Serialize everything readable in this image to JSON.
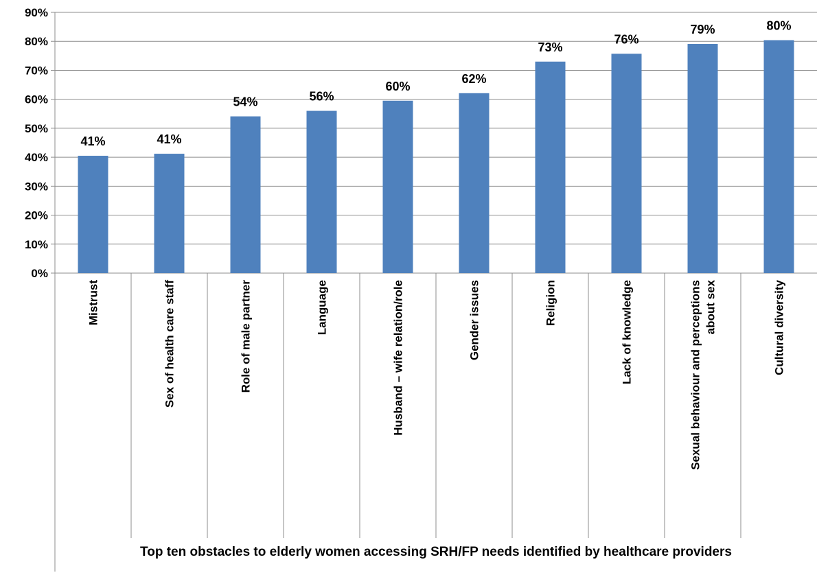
{
  "chart_data": {
    "type": "bar",
    "title": "",
    "xlabel": "Top ten obstacles to elderly women accessing SRH/FP needs identified by healthcare providers",
    "ylabel": "",
    "ylim": [
      0,
      90
    ],
    "y_ticks": [
      "0%",
      "10%",
      "20%",
      "30%",
      "40%",
      "50%",
      "60%",
      "70%",
      "80%",
      "90%"
    ],
    "y_tick_values": [
      0,
      10,
      20,
      30,
      40,
      50,
      60,
      70,
      80,
      90
    ],
    "grid": true,
    "legend": "none",
    "bar_color": "#4F81BD",
    "categories": [
      [
        "Mistrust"
      ],
      [
        "Sex of health care staff"
      ],
      [
        "Role of male partner"
      ],
      [
        "Language"
      ],
      [
        "Husband – wife relation/role"
      ],
      [
        "Gender issues"
      ],
      [
        "Religion"
      ],
      [
        "Lack of knowledge"
      ],
      [
        "Sexual behaviour and perceptions",
        "about sex"
      ],
      [
        "Cultural diversity"
      ]
    ],
    "values": [
      40.5,
      41.2,
      54.1,
      56.0,
      59.5,
      62.1,
      73.0,
      75.7,
      79.1,
      80.4
    ],
    "data_labels": [
      "41%",
      "41%",
      "54%",
      "56%",
      "60%",
      "62%",
      "73%",
      "76%",
      "79%",
      "80%"
    ]
  }
}
